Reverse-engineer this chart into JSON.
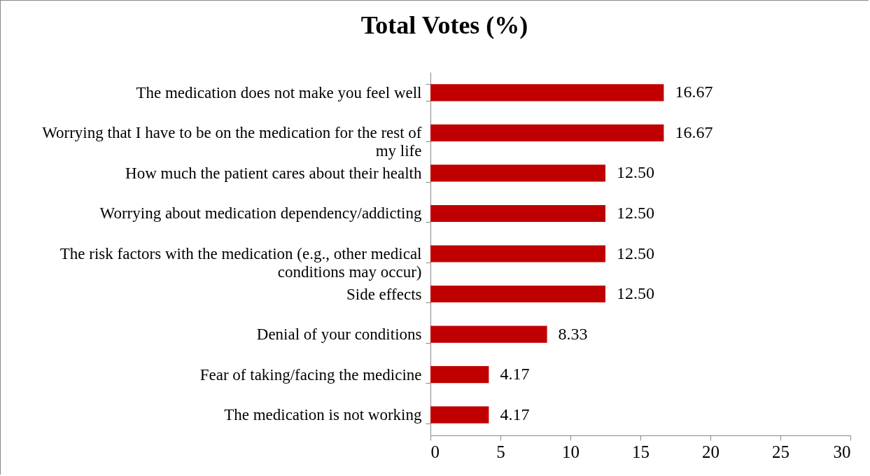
{
  "chart_data": {
    "type": "bar",
    "orientation": "horizontal",
    "title": "Total Votes (%)",
    "categories": [
      "The medication does not make you feel well",
      "Worrying that I have to be on the medication for the rest of my life",
      "How much the patient cares about their health",
      "Worrying about medication dependency/addicting",
      "The risk factors with the medication (e.g., other medical conditions may occur)",
      "Side effects",
      "Denial of your conditions",
      "Fear of taking/facing the medicine",
      "The medication is not working"
    ],
    "values": [
      16.67,
      16.67,
      12.5,
      12.5,
      12.5,
      12.5,
      8.33,
      4.17,
      4.17
    ],
    "value_labels": [
      "16.67",
      "16.67",
      "12.50",
      "12.50",
      "12.50",
      "12.50",
      "8.33",
      "4.17",
      "4.17"
    ],
    "color": "#c00000",
    "xlim": [
      0,
      30
    ],
    "xticks": [
      0,
      5,
      10,
      15,
      20,
      25,
      30
    ],
    "grid": false
  }
}
